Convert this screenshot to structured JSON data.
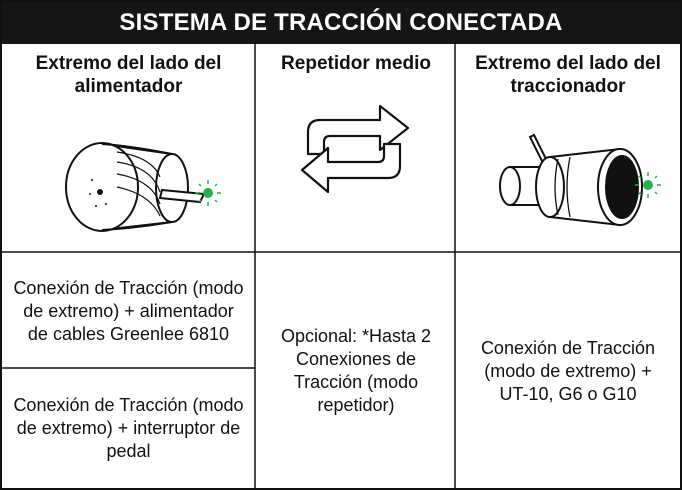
{
  "header": {
    "title": "SISTEMA DE TRACCIÓN CONECTADA"
  },
  "table": {
    "columns": [
      "Extremo del lado del alimentador",
      "Repetidor medio",
      "Extremo del lado del traccionador"
    ],
    "rows": [
      [
        "Conexión de Tracción (modo de extremo) + alimentador de cables Greenlee 6810",
        "Opcional: *Hasta 2 Conexiones de Tracción (modo repetidor)",
        "Conexión de Tracción (modo de extremo) + UT-10, G6 o G10"
      ],
      [
        "Conexión de Tracción (modo de extremo) + interruptor de pedal"
      ]
    ]
  }
}
